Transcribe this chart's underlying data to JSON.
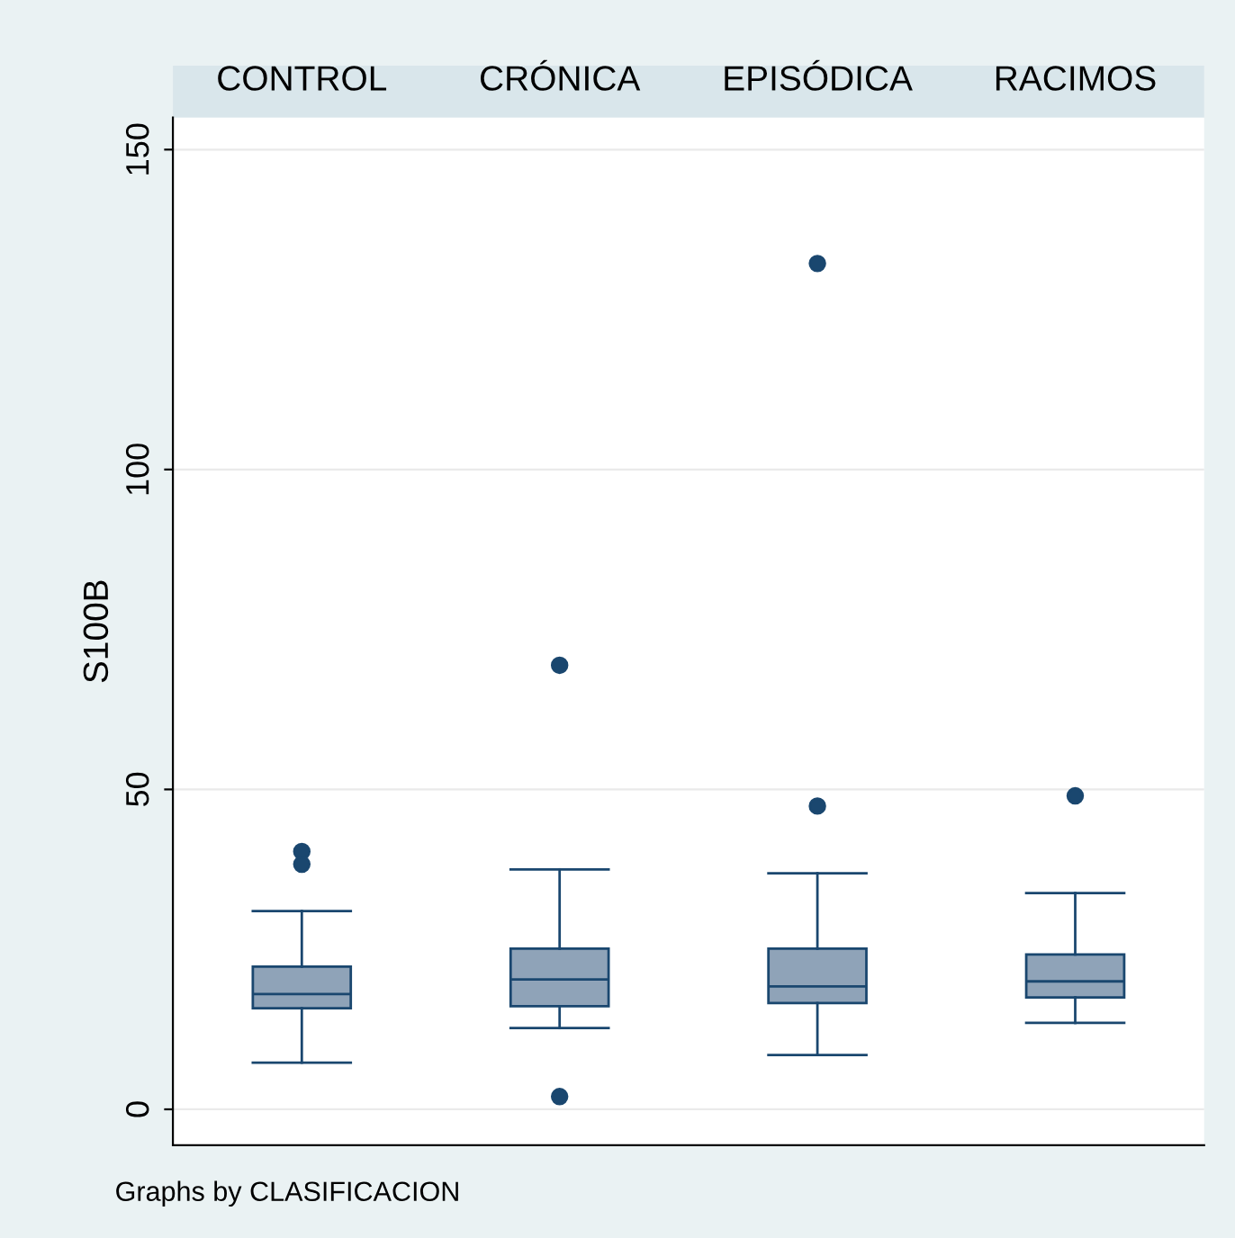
{
  "chart_data": {
    "type": "box",
    "ylabel": "S100B",
    "categories": [
      "CONTROL",
      "CRÓNICA",
      "EPISÓDICA",
      "RACIMOS"
    ],
    "boxes": [
      {
        "low": 7.3,
        "q1": 15.8,
        "median": 18,
        "q3": 22.3,
        "high": 31,
        "outliers": [
          40.3,
          38.3
        ]
      },
      {
        "low": 12.7,
        "q1": 16.1,
        "median": 20.3,
        "q3": 25.1,
        "high": 37.5,
        "outliers": [
          69.4,
          2
        ]
      },
      {
        "low": 8.5,
        "q1": 16.6,
        "median": 19.2,
        "q3": 25.1,
        "high": 36.9,
        "outliers": [
          132.2,
          47.4
        ]
      },
      {
        "low": 13.5,
        "q1": 17.5,
        "median": 20,
        "q3": 24.2,
        "high": 33.8,
        "outliers": [
          49
        ]
      }
    ],
    "color": "#8fa3b8",
    "ylim": [
      -5.6,
      155
    ],
    "yticks": [
      0,
      50,
      100,
      150
    ],
    "grid": "y",
    "legend": false,
    "annotations": [
      "Graphs by CLASIFICACION"
    ]
  }
}
